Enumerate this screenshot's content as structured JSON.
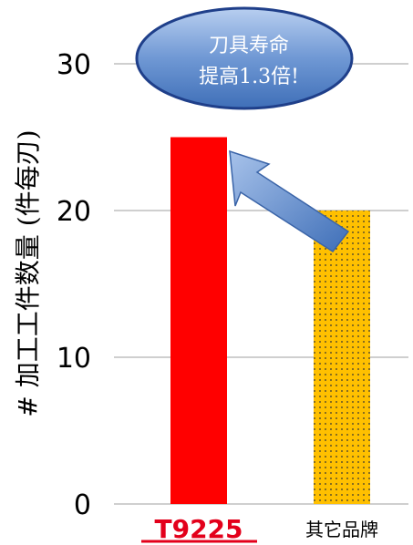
{
  "chart_data": {
    "type": "bar",
    "categories": [
      "T9225",
      "其它品牌"
    ],
    "values": [
      25,
      20
    ],
    "ylabel": "# 加工工件数量 (件每刃)",
    "xlabel": "",
    "ylim": [
      0,
      30
    ],
    "yticks": [
      "0",
      "10",
      "20",
      "30"
    ],
    "grid": true,
    "bar_fills": [
      "solid",
      "dotted"
    ],
    "colors": {
      "bar_t9225": "#ff0000",
      "bar_other": "#ffc000",
      "dots": "#333333",
      "grid": "#bfbfbf",
      "callout_fill": "#4f81bd",
      "arrow_fill": "#4f81bd",
      "brand_text": "#e3001b"
    },
    "annotation": {
      "line1": "刀具寿命",
      "line2": "提高1.3倍!"
    }
  }
}
